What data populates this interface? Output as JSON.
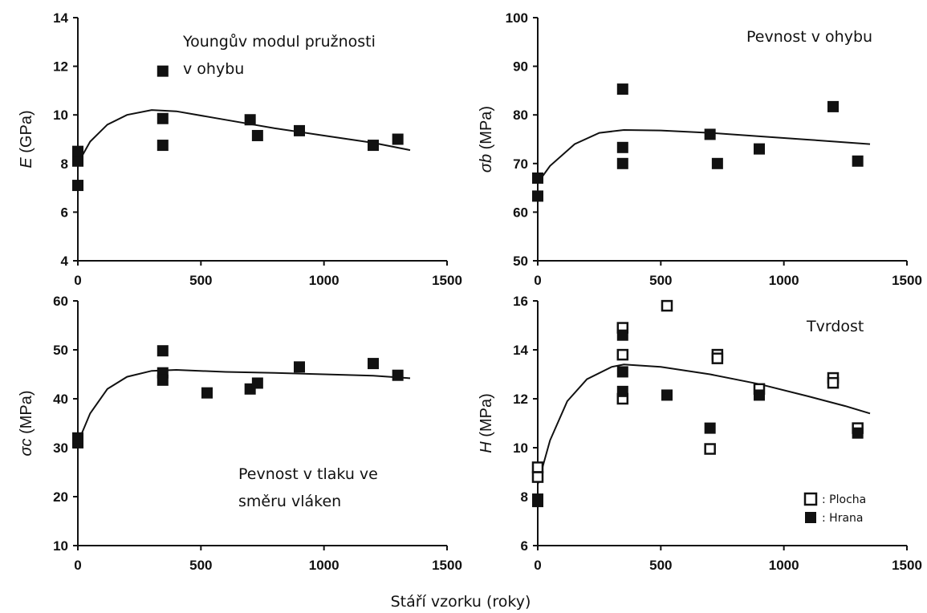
{
  "figure": {
    "shared_xlabel": "Stáří vzorku (roky)",
    "x_ticks": [
      "0",
      "500",
      "1000",
      "1500"
    ]
  },
  "legend": {
    "open_label": ": Plocha",
    "filled_label": ": Hrana"
  },
  "chart_data": [
    {
      "type": "scatter",
      "title": "Youngův modul pružnosti v ohybu",
      "title_lines": [
        "Youngův modul pružnosti",
        "v ohybu"
      ],
      "ylabel_sym": "E",
      "ylabel_unit": " (GPa)",
      "xlim": [
        0,
        1500
      ],
      "ylim": [
        4,
        14
      ],
      "yticks": [
        "4",
        "6",
        "8",
        "10",
        "12",
        "14"
      ],
      "series": [
        {
          "marker": "filled-square",
          "points": [
            [
              0,
              7.1
            ],
            [
              0,
              8.1
            ],
            [
              0,
              8.5
            ],
            [
              345,
              11.8
            ],
            [
              345,
              9.85
            ],
            [
              345,
              8.75
            ],
            [
              700,
              9.8
            ],
            [
              730,
              9.15
            ],
            [
              900,
              9.35
            ],
            [
              1200,
              8.75
            ],
            [
              1300,
              9.0
            ]
          ]
        }
      ],
      "trend": [
        [
          0,
          8.0
        ],
        [
          50,
          8.9
        ],
        [
          120,
          9.6
        ],
        [
          200,
          10.0
        ],
        [
          300,
          10.2
        ],
        [
          400,
          10.15
        ],
        [
          600,
          9.8
        ],
        [
          800,
          9.45
        ],
        [
          1000,
          9.15
        ],
        [
          1200,
          8.85
        ],
        [
          1350,
          8.55
        ]
      ]
    },
    {
      "type": "scatter",
      "title": "Pevnost v ohybu",
      "title_lines": [
        "Pevnost v ohybu"
      ],
      "ylabel_sym": "σb",
      "ylabel_unit": " (MPa)",
      "xlim": [
        0,
        1500
      ],
      "ylim": [
        50,
        100
      ],
      "yticks": [
        "50",
        "60",
        "70",
        "80",
        "90",
        "100"
      ],
      "series": [
        {
          "marker": "filled-square",
          "points": [
            [
              0,
              63.3
            ],
            [
              0,
              67.0
            ],
            [
              345,
              85.3
            ],
            [
              345,
              73.3
            ],
            [
              345,
              70.0
            ],
            [
              700,
              76.0
            ],
            [
              730,
              70.0
            ],
            [
              900,
              73.0
            ],
            [
              1200,
              81.7
            ],
            [
              1300,
              70.5
            ]
          ]
        }
      ],
      "trend": [
        [
          0,
          66.0
        ],
        [
          50,
          69.5
        ],
        [
          150,
          74.0
        ],
        [
          250,
          76.3
        ],
        [
          350,
          76.9
        ],
        [
          500,
          76.8
        ],
        [
          700,
          76.3
        ],
        [
          900,
          75.6
        ],
        [
          1100,
          74.9
        ],
        [
          1350,
          74.0
        ]
      ]
    },
    {
      "type": "scatter",
      "title": "Pevnost v tlaku ve směru vláken",
      "title_lines": [
        "Pevnost v tlaku ve",
        "směru vláken"
      ],
      "ylabel_sym": "σc",
      "ylabel_unit": " (MPa)",
      "xlim": [
        0,
        1500
      ],
      "ylim": [
        10,
        60
      ],
      "yticks": [
        "10",
        "20",
        "30",
        "40",
        "50",
        "60"
      ],
      "series": [
        {
          "marker": "filled-square",
          "points": [
            [
              0,
              31.0
            ],
            [
              0,
              32.0
            ],
            [
              345,
              49.8
            ],
            [
              345,
              45.3
            ],
            [
              345,
              43.8
            ],
            [
              525,
              41.2
            ],
            [
              700,
              42.0
            ],
            [
              730,
              43.2
            ],
            [
              900,
              46.5
            ],
            [
              1200,
              47.2
            ],
            [
              1300,
              44.8
            ]
          ]
        }
      ],
      "trend": [
        [
          0,
          31.0
        ],
        [
          50,
          37.0
        ],
        [
          120,
          42.0
        ],
        [
          200,
          44.5
        ],
        [
          300,
          45.7
        ],
        [
          400,
          45.9
        ],
        [
          600,
          45.5
        ],
        [
          800,
          45.3
        ],
        [
          1000,
          45.0
        ],
        [
          1200,
          44.7
        ],
        [
          1350,
          44.2
        ]
      ]
    },
    {
      "type": "scatter",
      "title": "Tvrdost",
      "title_lines": [
        "Tvrdost"
      ],
      "ylabel_sym": "H",
      "ylabel_unit": " (MPa)",
      "xlim": [
        0,
        1500
      ],
      "ylim": [
        6,
        16
      ],
      "yticks": [
        "6",
        "8",
        "10",
        "12",
        "14",
        "16"
      ],
      "series": [
        {
          "name": ": Plocha",
          "marker": "open-square",
          "points": [
            [
              0,
              9.2
            ],
            [
              0,
              8.8
            ],
            [
              345,
              14.9
            ],
            [
              345,
              13.8
            ],
            [
              345,
              12.0
            ],
            [
              525,
              15.8
            ],
            [
              700,
              9.95
            ],
            [
              730,
              13.8
            ],
            [
              730,
              13.65
            ],
            [
              900,
              12.4
            ],
            [
              1200,
              12.85
            ],
            [
              1200,
              12.65
            ],
            [
              1300,
              10.8
            ]
          ]
        },
        {
          "name": ": Hrana",
          "marker": "filled-square",
          "points": [
            [
              0,
              7.8
            ],
            [
              0,
              7.9
            ],
            [
              345,
              14.6
            ],
            [
              345,
              13.1
            ],
            [
              345,
              12.3
            ],
            [
              525,
              12.15
            ],
            [
              700,
              10.8
            ],
            [
              900,
              12.15
            ],
            [
              1300,
              10.6
            ]
          ]
        }
      ],
      "trend": [
        [
          0,
          8.5
        ],
        [
          50,
          10.3
        ],
        [
          120,
          11.9
        ],
        [
          200,
          12.8
        ],
        [
          300,
          13.3
        ],
        [
          350,
          13.4
        ],
        [
          500,
          13.3
        ],
        [
          700,
          13.0
        ],
        [
          900,
          12.6
        ],
        [
          1100,
          12.1
        ],
        [
          1250,
          11.7
        ],
        [
          1350,
          11.4
        ]
      ]
    }
  ]
}
